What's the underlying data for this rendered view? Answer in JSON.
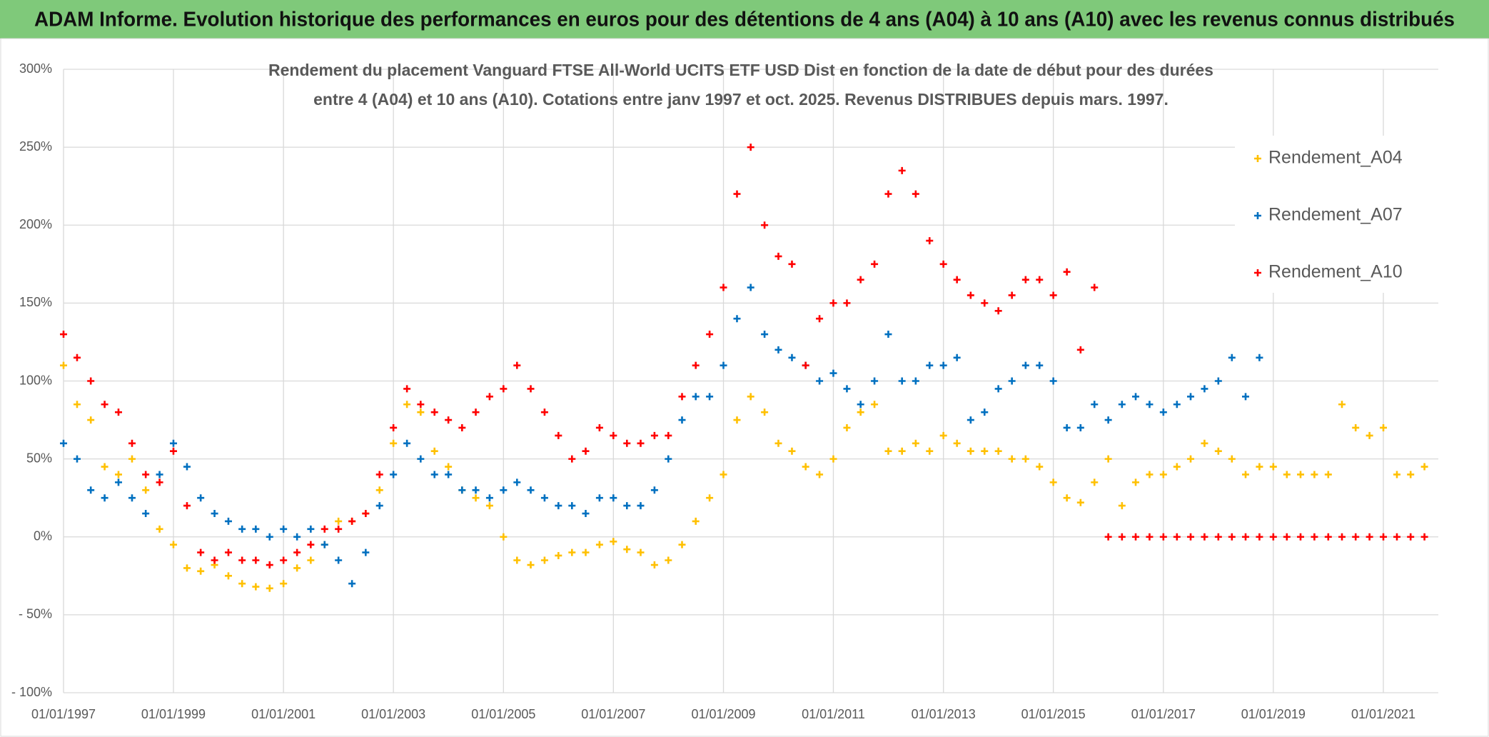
{
  "banner": "ADAM Informe. Evolution historique des performances en euros pour des détentions de 4 ans (A04) à 10 ans (A10) avec les revenus connus distribués",
  "chart_data": {
    "type": "scatter",
    "title": "Rendement du placement Vanguard FTSE All-World UCITS ETF USD Dist en fonction de la date de début pour des durées",
    "subtitle": "entre 4 (A04) et 10 ans (A10). Cotations entre janv 1997 et oct. 2025. Revenus DISTRIBUES depuis mars. 1997.",
    "x": [
      "1997-01-01",
      "1997-04-01",
      "1997-07-01",
      "1997-10-01",
      "1998-01-01",
      "1998-04-01",
      "1998-07-01",
      "1998-10-01",
      "1999-01-01",
      "1999-04-01",
      "1999-07-01",
      "1999-10-01",
      "2000-01-01",
      "2000-04-01",
      "2000-07-01",
      "2000-10-01",
      "2001-01-01",
      "2001-04-01",
      "2001-07-01",
      "2001-10-01",
      "2002-01-01",
      "2002-04-01",
      "2002-07-01",
      "2002-10-01",
      "2003-01-01",
      "2003-04-01",
      "2003-07-01",
      "2003-10-01",
      "2004-01-01",
      "2004-04-01",
      "2004-07-01",
      "2004-10-01",
      "2005-01-01",
      "2005-04-01",
      "2005-07-01",
      "2005-10-01",
      "2006-01-01",
      "2006-04-01",
      "2006-07-01",
      "2006-10-01",
      "2007-01-01",
      "2007-04-01",
      "2007-07-01",
      "2007-10-01",
      "2008-01-01",
      "2008-04-01",
      "2008-07-01",
      "2008-10-01",
      "2009-01-01",
      "2009-04-01",
      "2009-07-01",
      "2009-10-01",
      "2010-01-01",
      "2010-04-01",
      "2010-07-01",
      "2010-10-01",
      "2011-01-01",
      "2011-04-01",
      "2011-07-01",
      "2011-10-01",
      "2012-01-01",
      "2012-04-01",
      "2012-07-01",
      "2012-10-01",
      "2013-01-01",
      "2013-04-01",
      "2013-07-01",
      "2013-10-01",
      "2014-01-01",
      "2014-04-01",
      "2014-07-01",
      "2014-10-01",
      "2015-01-01",
      "2015-04-01",
      "2015-07-01",
      "2015-10-01",
      "2016-01-01",
      "2016-04-01",
      "2016-07-01",
      "2016-10-01",
      "2017-01-01",
      "2017-04-01",
      "2017-07-01",
      "2017-10-01",
      "2018-01-01",
      "2018-04-01",
      "2018-07-01",
      "2018-10-01",
      "2019-01-01",
      "2019-04-01",
      "2019-07-01",
      "2019-10-01",
      "2020-01-01",
      "2020-04-01",
      "2020-07-01",
      "2020-10-01",
      "2021-01-01",
      "2021-04-01",
      "2021-07-01",
      "2021-10-01"
    ],
    "series": [
      {
        "name": "Rendement_A04",
        "color": "#ffc000",
        "values": [
          110,
          85,
          75,
          45,
          40,
          50,
          30,
          5,
          -5,
          -20,
          -22,
          -18,
          -25,
          -30,
          -32,
          -33,
          -30,
          -20,
          -15,
          -5,
          10,
          10,
          15,
          30,
          60,
          85,
          80,
          55,
          45,
          30,
          25,
          20,
          0,
          -15,
          -18,
          -15,
          -12,
          -10,
          -10,
          -5,
          -3,
          -8,
          -10,
          -18,
          -15,
          -5,
          10,
          25,
          40,
          75,
          90,
          80,
          60,
          55,
          45,
          40,
          50,
          70,
          80,
          85,
          55,
          55,
          60,
          55,
          65,
          60,
          55,
          55,
          55,
          50,
          50,
          45,
          35,
          25,
          22,
          35,
          50,
          20,
          35,
          40,
          40,
          45,
          50,
          60,
          55,
          50,
          40,
          45,
          45,
          40,
          40,
          40,
          40,
          85,
          70,
          65,
          70,
          40,
          40,
          45
        ]
      },
      {
        "name": "Rendement_A07",
        "color": "#0070c0",
        "values": [
          60,
          50,
          30,
          25,
          35,
          25,
          15,
          40,
          60,
          45,
          25,
          15,
          10,
          5,
          5,
          0,
          5,
          0,
          5,
          -5,
          -15,
          -30,
          -10,
          20,
          40,
          60,
          50,
          40,
          40,
          30,
          30,
          25,
          30,
          35,
          30,
          25,
          20,
          20,
          15,
          25,
          25,
          20,
          20,
          30,
          50,
          75,
          90,
          90,
          110,
          140,
          160,
          130,
          120,
          115,
          110,
          100,
          105,
          95,
          85,
          100,
          130,
          100,
          100,
          110,
          110,
          115,
          75,
          80,
          95,
          100,
          110,
          110,
          100,
          70,
          70,
          85,
          75,
          85,
          90,
          85,
          80,
          85,
          90,
          95,
          100,
          115,
          90,
          115,
          null,
          null,
          null,
          null,
          null,
          null,
          null,
          null,
          null,
          null,
          null,
          null
        ]
      },
      {
        "name": "Rendement_A10",
        "color": "#ff0000",
        "values": [
          130,
          115,
          100,
          85,
          80,
          60,
          40,
          35,
          55,
          20,
          -10,
          -15,
          -10,
          -15,
          -15,
          -18,
          -15,
          -10,
          -5,
          5,
          5,
          10,
          15,
          40,
          70,
          95,
          85,
          80,
          75,
          70,
          80,
          90,
          95,
          110,
          95,
          80,
          65,
          50,
          55,
          70,
          65,
          60,
          60,
          65,
          65,
          90,
          110,
          130,
          160,
          220,
          250,
          200,
          180,
          175,
          110,
          140,
          150,
          150,
          165,
          175,
          220,
          235,
          220,
          190,
          175,
          165,
          155,
          150,
          145,
          155,
          165,
          165,
          155,
          170,
          120,
          160,
          0,
          0,
          0,
          0,
          0,
          0,
          0,
          0,
          0,
          0,
          0,
          0,
          0,
          0,
          0,
          0,
          0,
          0,
          0,
          0,
          0,
          0,
          0,
          0
        ]
      }
    ],
    "xlim": [
      "1997-01-01",
      "2022-01-01"
    ],
    "xticks": [
      {
        "value": "1997-01-01",
        "label": "01/01/1997"
      },
      {
        "value": "1999-01-01",
        "label": "01/01/1999"
      },
      {
        "value": "2001-01-01",
        "label": "01/01/2001"
      },
      {
        "value": "2003-01-01",
        "label": "01/01/2003"
      },
      {
        "value": "2005-01-01",
        "label": "01/01/2005"
      },
      {
        "value": "2007-01-01",
        "label": "01/01/2007"
      },
      {
        "value": "2009-01-01",
        "label": "01/01/2009"
      },
      {
        "value": "2011-01-01",
        "label": "01/01/2011"
      },
      {
        "value": "2013-01-01",
        "label": "01/01/2013"
      },
      {
        "value": "2015-01-01",
        "label": "01/01/2015"
      },
      {
        "value": "2017-01-01",
        "label": "01/01/2017"
      },
      {
        "value": "2019-01-01",
        "label": "01/01/2019"
      },
      {
        "value": "2021-01-01",
        "label": "01/01/2021"
      }
    ],
    "ylim": [
      -100,
      300
    ],
    "yticks": [
      {
        "value": -100,
        "label": "- 100%"
      },
      {
        "value": -50,
        "label": "- 50%"
      },
      {
        "value": 0,
        "label": "0%"
      },
      {
        "value": 50,
        "label": "50%"
      },
      {
        "value": 100,
        "label": "100%"
      },
      {
        "value": 150,
        "label": "150%"
      },
      {
        "value": 200,
        "label": "200%"
      },
      {
        "value": 250,
        "label": "250%"
      },
      {
        "value": 300,
        "label": "300%"
      }
    ],
    "grid": true,
    "legend": "upper right"
  }
}
